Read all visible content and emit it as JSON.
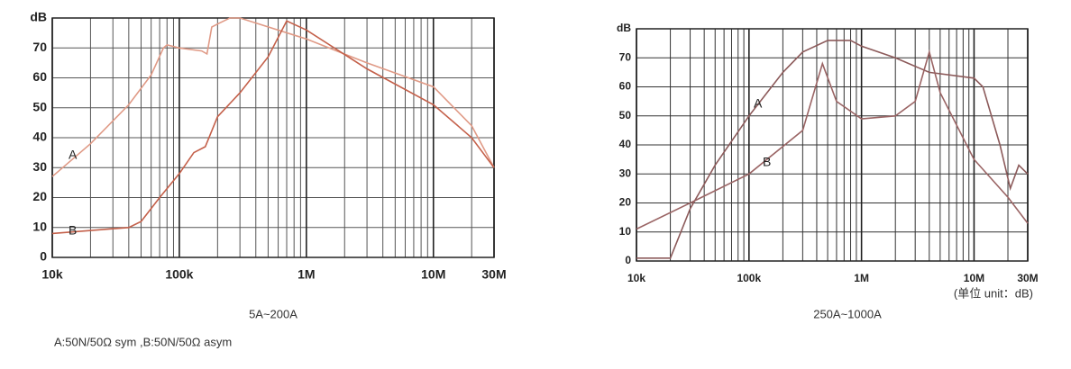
{
  "chart_data": [
    {
      "type": "line",
      "xscale": "log",
      "grid": true,
      "caption": "5A~200A",
      "xlim": [
        10000,
        30000000
      ],
      "ylim": [
        0,
        80
      ],
      "xticks": [
        {
          "value": 10000,
          "label": "10k"
        },
        {
          "value": 100000,
          "label": "100k"
        },
        {
          "value": 1000000,
          "label": "1M"
        },
        {
          "value": 10000000,
          "label": "10M"
        },
        {
          "value": 30000000,
          "label": "30M"
        }
      ],
      "xgrid_minor": [
        20000,
        30000,
        40000,
        50000,
        60000,
        70000,
        80000,
        90000,
        200000,
        300000,
        400000,
        500000,
        600000,
        700000,
        800000,
        900000,
        2000000,
        3000000,
        4000000,
        5000000,
        6000000,
        7000000,
        8000000,
        9000000,
        20000000
      ],
      "yticks": [
        0,
        10,
        20,
        30,
        40,
        50,
        60,
        70,
        {
          "value": 80,
          "label": "dB"
        }
      ],
      "series": [
        {
          "name": "A",
          "color": "#e09a86",
          "x": [
            10000,
            20000,
            40000,
            60000,
            75000,
            80000,
            100000,
            150000,
            165000,
            180000,
            200000,
            250000,
            300000,
            1000000,
            3000000,
            10000000,
            20000000,
            30000000
          ],
          "values": [
            27,
            38,
            51,
            61,
            70,
            71,
            70,
            69,
            68,
            77,
            78,
            80,
            80,
            73,
            65,
            57,
            44,
            30
          ]
        },
        {
          "name": "B",
          "color": "#c4604a",
          "x": [
            10000,
            40000,
            50000,
            70000,
            100000,
            130000,
            160000,
            200000,
            300000,
            500000,
            700000,
            1000000,
            3000000,
            10000000,
            20000000,
            30000000
          ],
          "values": [
            8,
            10,
            12,
            20,
            28,
            35,
            37,
            47,
            55,
            67,
            79,
            76,
            63,
            51,
            40,
            30
          ]
        }
      ]
    },
    {
      "type": "line",
      "xscale": "log",
      "grid": true,
      "caption": "250A~1000A",
      "unit_note": "(单位 unit：dB)",
      "xlim": [
        10000,
        30000000
      ],
      "ylim": [
        0,
        80
      ],
      "xticks": [
        {
          "value": 10000,
          "label": "10k"
        },
        {
          "value": 100000,
          "label": "100k"
        },
        {
          "value": 1000000,
          "label": "1M"
        },
        {
          "value": 10000000,
          "label": "10M"
        },
        {
          "value": 30000000,
          "label": "30M"
        }
      ],
      "xgrid_minor": [
        20000,
        30000,
        40000,
        50000,
        60000,
        70000,
        80000,
        90000,
        200000,
        300000,
        400000,
        500000,
        600000,
        700000,
        800000,
        900000,
        2000000,
        3000000,
        4000000,
        5000000,
        6000000,
        7000000,
        8000000,
        9000000,
        20000000
      ],
      "yticks": [
        0,
        10,
        20,
        30,
        40,
        50,
        60,
        70,
        {
          "value": 80,
          "label": "dB"
        }
      ],
      "series": [
        {
          "name": "A",
          "color": "#8c5a5a",
          "x": [
            10000,
            20000,
            30000,
            50000,
            100000,
            200000,
            300000,
            500000,
            800000,
            1000000,
            2000000,
            4000000,
            10000000,
            12000000,
            17000000,
            21000000,
            25000000,
            30000000
          ],
          "values": [
            1,
            1,
            18,
            33,
            50,
            65,
            72,
            76,
            76,
            74,
            70,
            65,
            63,
            60,
            40,
            25,
            33,
            30
          ]
        },
        {
          "name": "B",
          "color": "#9a6464",
          "x": [
            10000,
            30000,
            100000,
            300000,
            450000,
            600000,
            1000000,
            2000000,
            3000000,
            4000000,
            5000000,
            10000000,
            20000000,
            30000000
          ],
          "values": [
            11,
            20,
            30,
            45,
            68,
            55,
            49,
            50,
            55,
            72,
            58,
            35,
            22,
            13
          ]
        }
      ]
    }
  ],
  "note": "A:50N/50Ω sym ,B:50N/50Ω asym"
}
